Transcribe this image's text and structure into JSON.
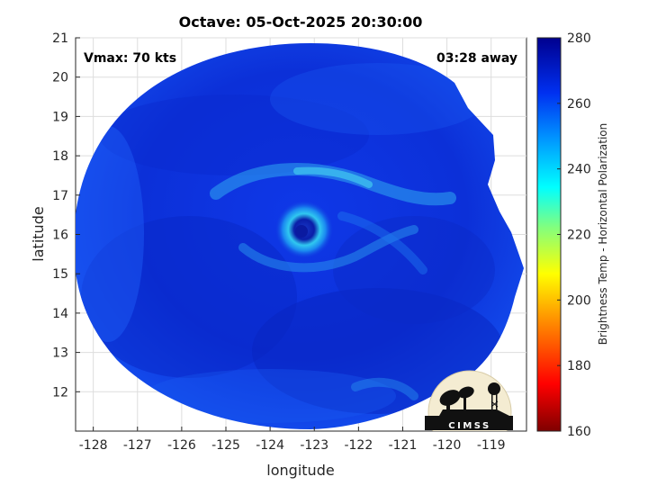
{
  "title": "Octave: 05-Oct-2025 20:30:00",
  "annotations": {
    "vmax": "Vmax: 70 kts",
    "time_away": "03:28 away"
  },
  "axes": {
    "xlabel": "longitude",
    "ylabel": "latitude",
    "x_ticks": [
      "-128",
      "-127",
      "-126",
      "-125",
      "-124",
      "-123",
      "-122",
      "-121",
      "-120",
      "-119"
    ],
    "y_ticks": [
      "21",
      "20",
      "19",
      "18",
      "17",
      "16",
      "15",
      "14",
      "13",
      "12"
    ],
    "xlim": [
      -128.4,
      -118.2
    ],
    "ylim": [
      11.0,
      21.0
    ]
  },
  "colorbar": {
    "label": "Brightness Temp - Horizontal Polarization",
    "ticks": [
      "280",
      "260",
      "240",
      "220",
      "200",
      "180",
      "160"
    ],
    "range": [
      160,
      280
    ],
    "colors": [
      "#7f0000",
      "#ff0000",
      "#ffff00",
      "#00ffff",
      "#0000ff",
      "#00008f"
    ]
  },
  "logo": {
    "text": "CIMSS"
  },
  "storm": {
    "center_lon": -123.15,
    "center_lat": 16.05,
    "scene_max_lat": 21.0,
    "scene_min_lat": 11.0
  }
}
